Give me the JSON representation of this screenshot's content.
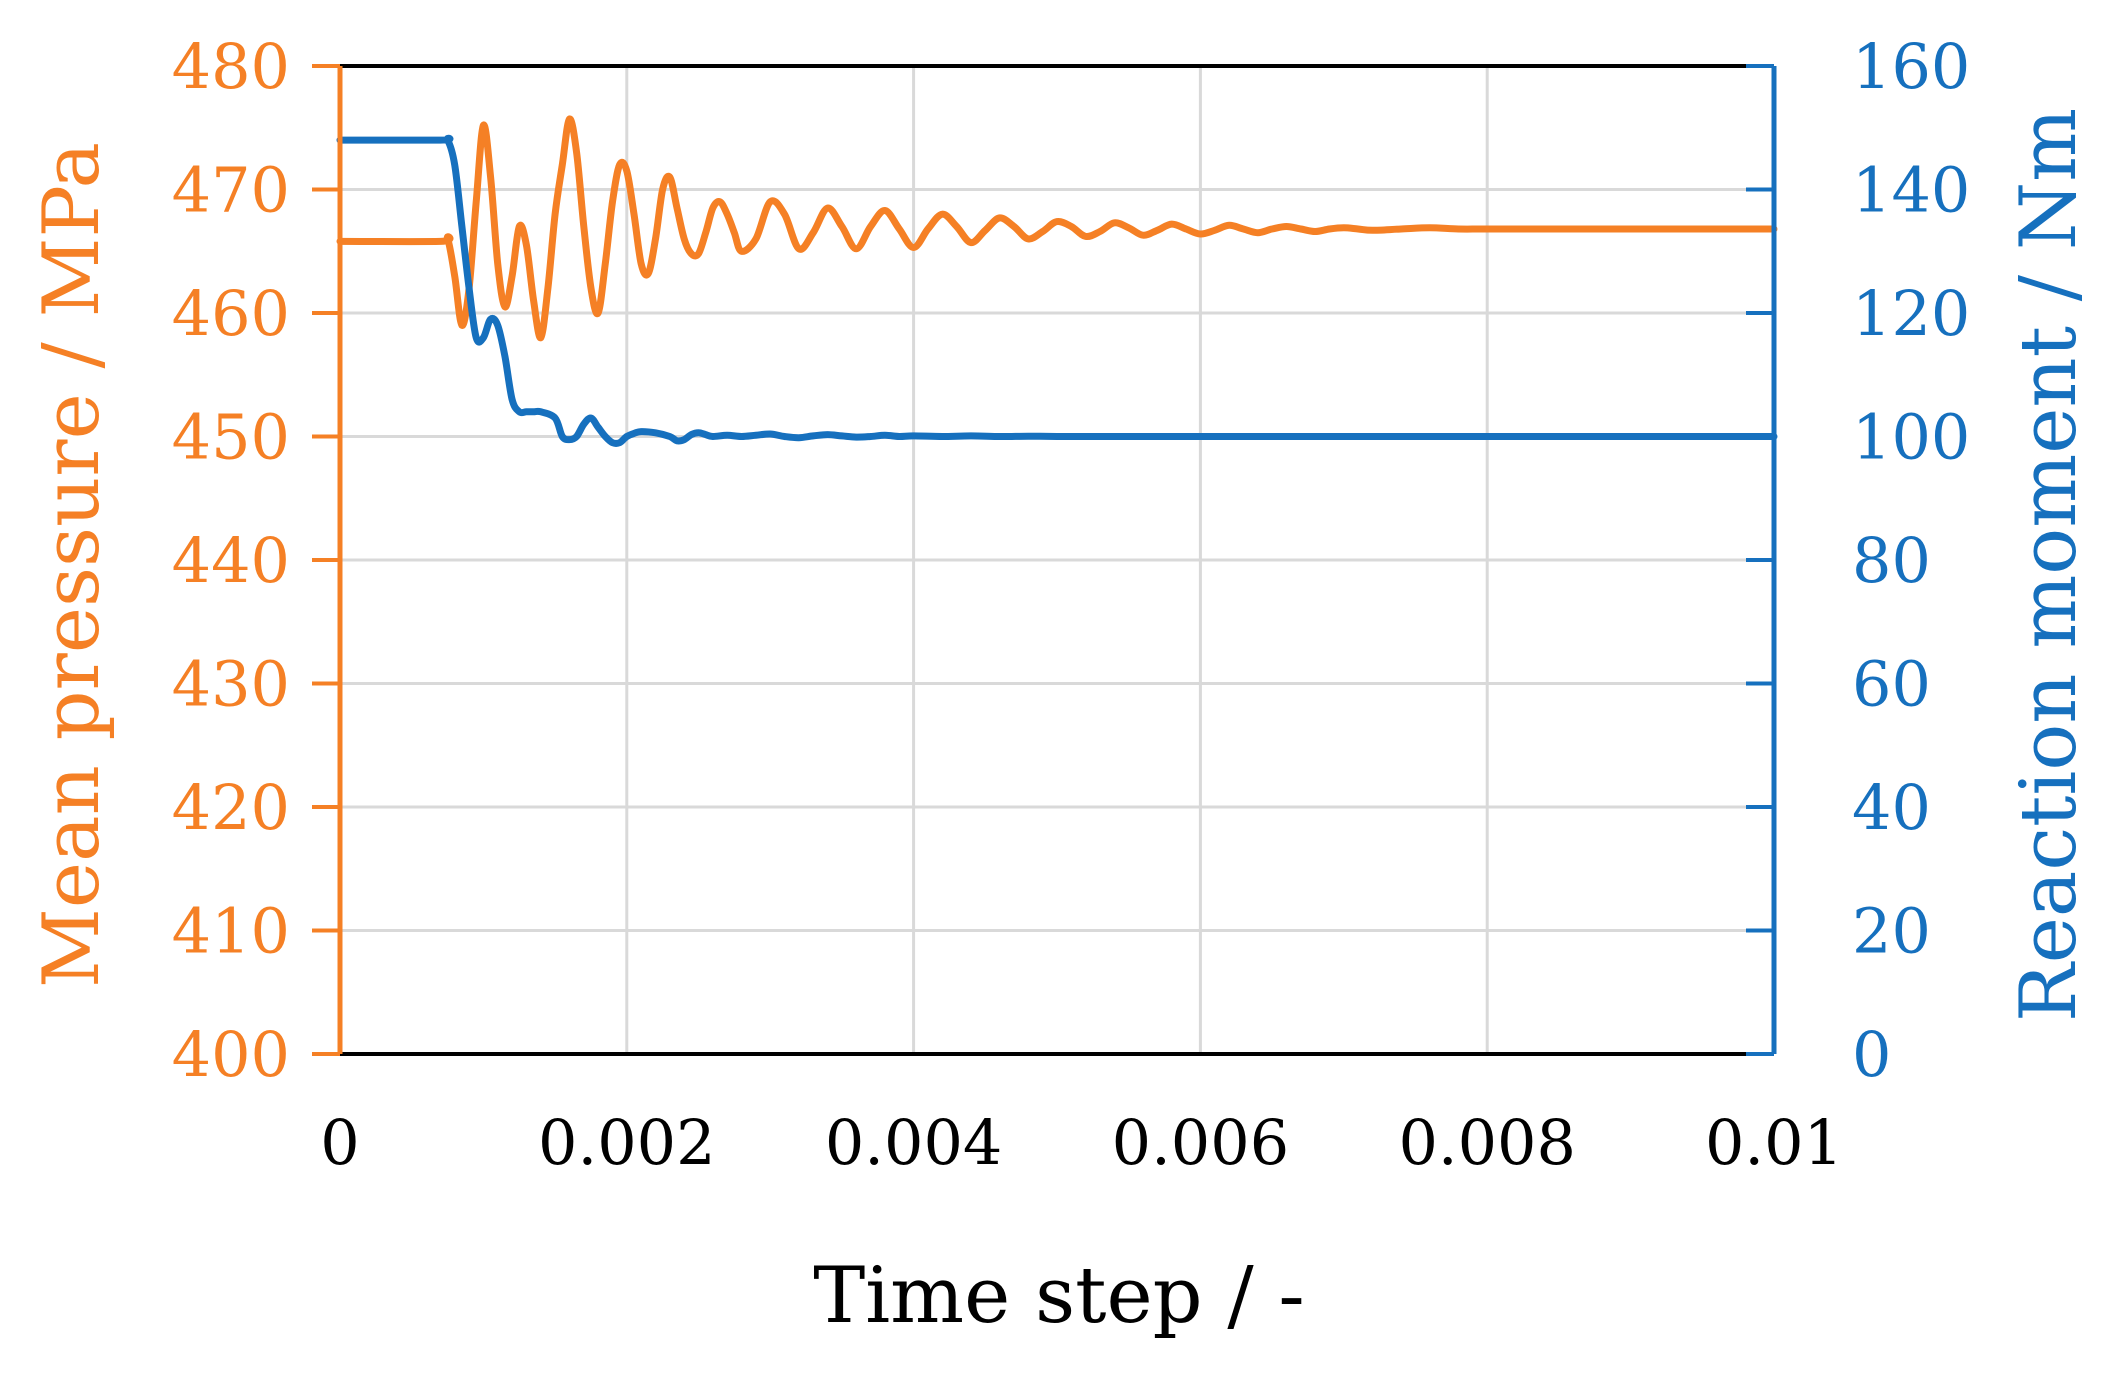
{
  "chart_data": {
    "type": "line",
    "xlabel": "Time step / -",
    "ylabel_left": "Mean pressure / MPa",
    "ylabel_right": "Reaction moment / Nm",
    "xlim": [
      0,
      0.01
    ],
    "ylim_left": [
      400,
      480
    ],
    "ylim_right": [
      0,
      160
    ],
    "x_ticks": [
      "0",
      "0.002",
      "0.004",
      "0.006",
      "0.008",
      "0.01"
    ],
    "y_left_ticks": [
      "400",
      "410",
      "420",
      "430",
      "440",
      "450",
      "460",
      "470",
      "480"
    ],
    "y_right_ticks": [
      "0",
      "20",
      "40",
      "60",
      "80",
      "100",
      "120",
      "140",
      "160"
    ],
    "grid": true,
    "colors": {
      "left": "#F58025",
      "right": "#1670BE",
      "grid": "#D9D9D9",
      "frame": "#000000"
    },
    "series": [
      {
        "axis": "left",
        "color": "#F58025",
        "x": [
          0,
          0.0007,
          0.00075,
          0.0008,
          0.00085,
          0.0009,
          0.00095,
          0.001,
          0.00105,
          0.0011,
          0.00115,
          0.0012,
          0.00125,
          0.0013,
          0.00135,
          0.0014,
          0.00145,
          0.0015,
          0.00155,
          0.0016,
          0.00165,
          0.0017,
          0.00175,
          0.0018,
          0.00185,
          0.0019,
          0.00195,
          0.002,
          0.00205,
          0.0021,
          0.00215,
          0.0022,
          0.00225,
          0.0023,
          0.00235,
          0.0024,
          0.00245,
          0.0025,
          0.00255,
          0.0026,
          0.00265,
          0.0027,
          0.00275,
          0.0028,
          0.0029,
          0.003,
          0.0031,
          0.0032,
          0.0033,
          0.0034,
          0.0035,
          0.0036,
          0.0037,
          0.0038,
          0.0039,
          0.004,
          0.0041,
          0.0042,
          0.0043,
          0.0044,
          0.0045,
          0.0046,
          0.0047,
          0.0048,
          0.0049,
          0.005,
          0.0051,
          0.0052,
          0.0053,
          0.0054,
          0.0055,
          0.0056,
          0.0057,
          0.0058,
          0.0059,
          0.006,
          0.0061,
          0.0062,
          0.0063,
          0.0064,
          0.0065,
          0.0066,
          0.0067,
          0.0068,
          0.0069,
          0.007,
          0.0071,
          0.0072,
          0.0074,
          0.0076,
          0.0078,
          0.008,
          0.0085,
          0.009,
          0.0095,
          0.01
        ],
        "y": [
          465.8,
          465.8,
          466.0,
          463.0,
          459.0,
          462.0,
          469.0,
          475.2,
          471.0,
          464.0,
          460.5,
          463.0,
          467.0,
          465.5,
          461.0,
          458.0,
          462.0,
          468.0,
          472.0,
          475.7,
          473.0,
          467.0,
          462.0,
          460.0,
          464.0,
          469.0,
          472.0,
          471.5,
          468.0,
          464.0,
          463.2,
          466.0,
          470.0,
          471.0,
          468.5,
          466.0,
          464.8,
          464.8,
          466.5,
          468.5,
          469.0,
          468.0,
          466.5,
          465.0,
          466.0,
          469.0,
          468.0,
          465.2,
          466.5,
          468.5,
          467.0,
          465.2,
          467.0,
          468.3,
          466.8,
          465.3,
          466.8,
          468.0,
          467.0,
          465.7,
          466.7,
          467.7,
          467.0,
          466.0,
          466.6,
          467.4,
          467.0,
          466.2,
          466.6,
          467.3,
          466.9,
          466.3,
          466.7,
          467.2,
          466.8,
          466.4,
          466.7,
          467.1,
          466.8,
          466.5,
          466.8,
          467.0,
          466.8,
          466.6,
          466.8,
          466.9,
          466.8,
          466.7,
          466.8,
          466.9,
          466.8,
          466.8,
          466.8,
          466.8,
          466.8,
          466.8
        ]
      },
      {
        "axis": "right",
        "color": "#1670BE",
        "x": [
          0,
          0.0007,
          0.00075,
          0.0008,
          0.00085,
          0.0009,
          0.00095,
          0.001,
          0.00105,
          0.0011,
          0.00115,
          0.0012,
          0.00125,
          0.0013,
          0.00135,
          0.0014,
          0.0015,
          0.00155,
          0.0016,
          0.00165,
          0.0017,
          0.00175,
          0.0018,
          0.00185,
          0.0019,
          0.00195,
          0.002,
          0.00205,
          0.0021,
          0.0022,
          0.0023,
          0.00235,
          0.0024,
          0.00245,
          0.0025,
          0.00255,
          0.0026,
          0.0027,
          0.0028,
          0.0029,
          0.003,
          0.0031,
          0.0032,
          0.0033,
          0.0034,
          0.0035,
          0.0036,
          0.0037,
          0.0038,
          0.0039,
          0.004,
          0.0042,
          0.0044,
          0.0046,
          0.0048,
          0.005,
          0.0055,
          0.006,
          0.007,
          0.008,
          0.009,
          0.01
        ],
        "y": [
          148,
          148,
          148,
          144,
          134,
          124,
          116,
          116,
          119,
          118,
          113,
          106,
          104,
          104,
          104,
          104,
          103,
          100,
          99.5,
          100,
          102,
          103,
          101.5,
          100,
          99,
          99,
          100,
          100.5,
          100.8,
          100.6,
          100,
          99.3,
          99.5,
          100.3,
          100.6,
          100.3,
          100,
          100.2,
          100,
          100.2,
          100.4,
          100,
          99.8,
          100.1,
          100.3,
          100.1,
          99.9,
          100,
          100.2,
          100,
          100.1,
          100,
          100.1,
          100,
          100.05,
          100,
          100,
          100,
          100,
          100,
          100,
          100
        ]
      }
    ]
  }
}
